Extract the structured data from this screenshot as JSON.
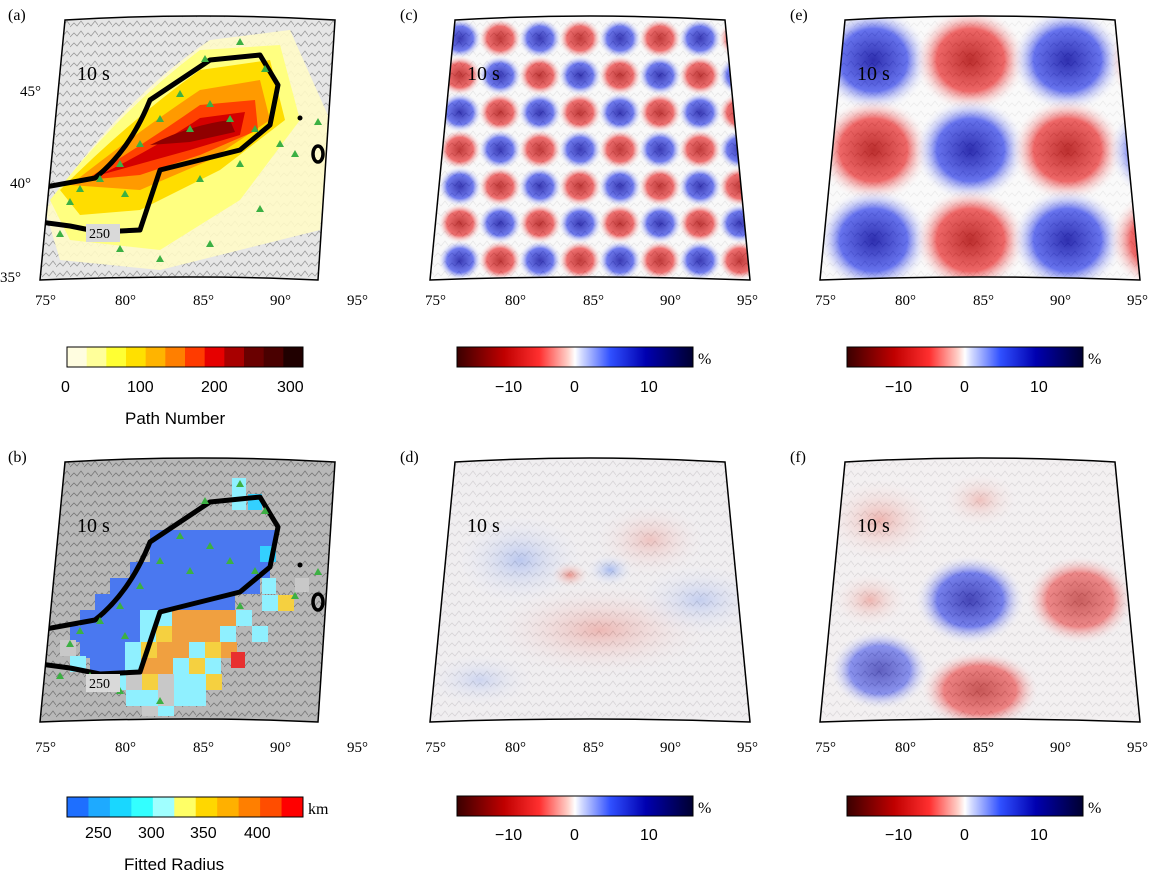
{
  "figure": {
    "period_label": "10 s",
    "contour_label": "250",
    "lon_ticks": [
      "75°",
      "80°",
      "85°",
      "90°",
      "95°"
    ],
    "lat_ticks": [
      "45°",
      "40°",
      "35°"
    ],
    "panels": [
      {
        "letter": "(a)",
        "type": "path_density"
      },
      {
        "letter": "(c)",
        "type": "checkerboard_small"
      },
      {
        "letter": "(e)",
        "type": "checkerboard_large"
      },
      {
        "letter": "(b)",
        "type": "fitted_radius"
      },
      {
        "letter": "(d)",
        "type": "recovered_small"
      },
      {
        "letter": "(f)",
        "type": "recovered_large"
      }
    ],
    "colorbars": {
      "path": {
        "title": "Path Number",
        "ticks": [
          "0",
          "100",
          "200",
          "300"
        ],
        "colors": [
          "#fffde0",
          "#ffff9a",
          "#ffff33",
          "#ffe000",
          "#ffb400",
          "#ff7f00",
          "#ff3b00",
          "#e60000",
          "#a80000",
          "#6a0000",
          "#4a0000",
          "#200000"
        ]
      },
      "radius": {
        "title": "Fitted Radius",
        "unit": "km",
        "ticks": [
          "250",
          "300",
          "350",
          "400"
        ],
        "colors": [
          "#1e6fff",
          "#1eaaff",
          "#19d7ff",
          "#33ffff",
          "#a0ffff",
          "#ffff66",
          "#ffd700",
          "#ffb000",
          "#ff7f00",
          "#ff4d00",
          "#ff0000"
        ]
      },
      "velocity": {
        "unit": "%",
        "ticks": [
          "−10",
          "0",
          "10"
        ]
      }
    },
    "colors": {
      "station": "#3cb043",
      "contour": "#000000",
      "positive": "#0000cc",
      "negative": "#cc0000"
    }
  }
}
